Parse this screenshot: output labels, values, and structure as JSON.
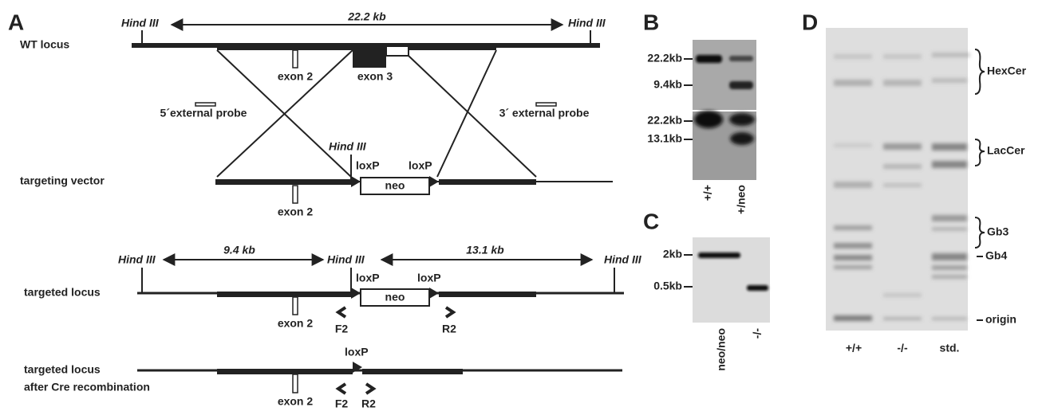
{
  "panel_a": {
    "label": "A",
    "wt_locus": {
      "label": "WT locus",
      "left_site": "Hind III",
      "right_site": "Hind III",
      "distance": "22.2 kb",
      "exon2": "exon 2",
      "exon3": "exon 3",
      "probe5": "5´external probe",
      "probe3": "3´ external probe"
    },
    "targeting_vector": {
      "label": "targeting vector",
      "site": "Hind III",
      "loxp": [
        "loxP",
        "loxP"
      ],
      "neo": "neo",
      "exon2": "exon 2"
    },
    "targeted_locus": {
      "label": "targeted locus",
      "sites": [
        "Hind III",
        "Hind III",
        "Hind III"
      ],
      "distances": [
        "9.4 kb",
        "13.1 kb"
      ],
      "loxp": [
        "loxP",
        "loxP"
      ],
      "neo": "neo",
      "exon2": "exon 2",
      "primers": [
        "F2",
        "R2"
      ]
    },
    "cre_locus": {
      "label": [
        "targeted locus",
        "after Cre recombination"
      ],
      "loxp": "loxP",
      "exon2": "exon 2",
      "primers": [
        "F2",
        "R2"
      ]
    }
  },
  "panel_b": {
    "label": "B",
    "top_markers": [
      "22.2kb",
      "9.4kb"
    ],
    "bottom_markers": [
      "22.2kb",
      "13.1kb"
    ],
    "lanes": [
      "+/+",
      "+/neo"
    ]
  },
  "panel_c": {
    "label": "C",
    "markers": [
      "2kb",
      "0.5kb"
    ],
    "lanes": [
      "neo/neo",
      "-/-"
    ]
  },
  "panel_d": {
    "label": "D",
    "bands": [
      "HexCer",
      "LacCer",
      "Gb3",
      "Gb4",
      "origin"
    ],
    "lanes": [
      "+/+",
      "-/-",
      "std."
    ]
  }
}
